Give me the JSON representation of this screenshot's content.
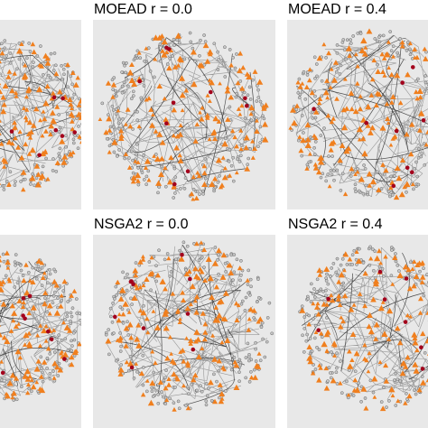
{
  "figure": {
    "panels": [
      {
        "id": "p1",
        "title": ""
      },
      {
        "id": "p2",
        "title": "MOEAD r = 0.0"
      },
      {
        "id": "p3",
        "title": "MOEAD r = 0.4"
      },
      {
        "id": "p4",
        "title": ""
      },
      {
        "id": "p5",
        "title": "NSGA2 r = 0.0"
      },
      {
        "id": "p6",
        "title": "NSGA2 r = 0.4"
      }
    ],
    "colors": {
      "panel_background": "#e8e8e8",
      "edge": "#555555",
      "edge_dark": "#222222",
      "triangle_node": "#f07f1e",
      "circle_node_fill": "#c8c8c8",
      "circle_node_stroke": "#666666",
      "highlight_node": "#a3001c"
    },
    "node_shapes": [
      "triangle-node",
      "circle-node",
      "highlight-node"
    ]
  }
}
